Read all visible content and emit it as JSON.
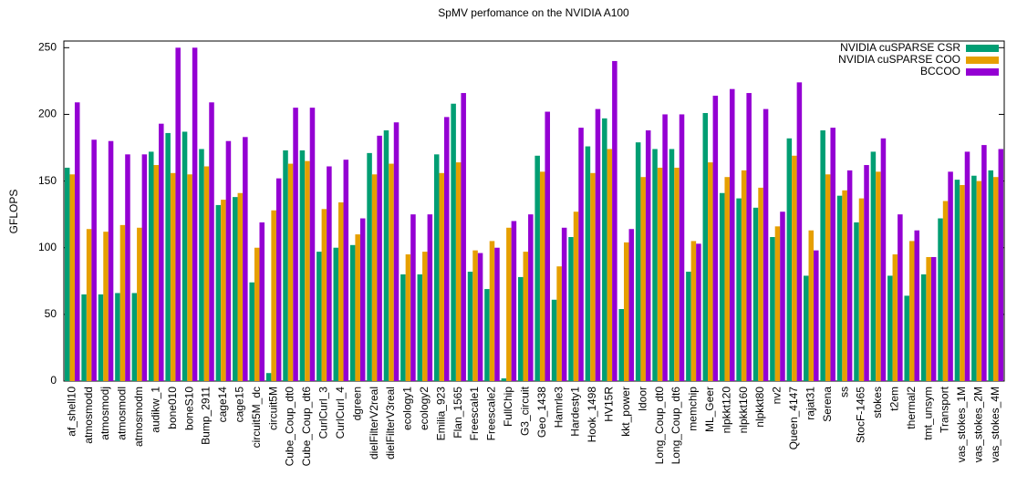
{
  "chart_data": {
    "type": "bar",
    "title": "SpMV perfomance on the NVIDIA A100",
    "ylabel": "GFLOPS",
    "categories": [
      "af_shell10",
      "atmosmodd",
      "atmosmodj",
      "atmosmodl",
      "atmosmodm",
      "audikw_1",
      "bone010",
      "boneS10",
      "Bump_2911",
      "cage14",
      "cage15",
      "circuit5M_dc",
      "circuit5M",
      "Cube_Coup_dt0",
      "Cube_Coup_dt6",
      "CurlCurl_3",
      "CurlCurl_4",
      "dgreen",
      "dielFilterV2real",
      "dielFilterV3real",
      "ecology1",
      "ecology2",
      "Emilia_923",
      "Flan_1565",
      "Freescale1",
      "Freescale2",
      "FullChip",
      "G3_circuit",
      "Geo_1438",
      "Hamrle3",
      "Hardesty1",
      "Hook_1498",
      "HV15R",
      "kkt_power",
      "ldoor",
      "Long_Coup_dt0",
      "Long_Coup_dt6",
      "memchip",
      "ML_Geer",
      "nlpkkt120",
      "nlpkkt160",
      "nlpkkt80",
      "nv2",
      "Queen_4147",
      "rajat31",
      "Serena",
      "ss",
      "StocF-1465",
      "stokes",
      "t2em",
      "thermal2",
      "tmt_unsym",
      "Transport",
      "vas_stokes_1M",
      "vas_stokes_2M",
      "vas_stokes_4M"
    ],
    "series": [
      {
        "name": "NVIDIA cuSPARSE CSR",
        "color": "#009e73",
        "values": [
          160,
          65,
          65,
          66,
          66,
          172,
          186,
          187,
          174,
          132,
          138,
          74,
          6,
          173,
          173,
          97,
          100,
          102,
          171,
          188,
          80,
          80,
          170,
          208,
          82,
          69,
          2,
          78,
          169,
          61,
          108,
          176,
          197,
          54,
          179,
          174,
          174,
          82,
          201,
          141,
          137,
          130,
          108,
          182,
          79,
          188,
          139,
          119,
          172,
          79,
          64,
          80,
          122,
          151,
          154,
          158
        ]
      },
      {
        "name": "NVIDIA cuSPARSE COO",
        "color": "#e69f00",
        "values": [
          155,
          114,
          112,
          117,
          115,
          162,
          156,
          155,
          161,
          136,
          141,
          100,
          128,
          163,
          165,
          129,
          134,
          110,
          155,
          163,
          95,
          97,
          156,
          164,
          98,
          105,
          115,
          97,
          157,
          86,
          127,
          156,
          174,
          104,
          153,
          160,
          160,
          105,
          164,
          153,
          158,
          145,
          116,
          169,
          113,
          155,
          143,
          137,
          157,
          95,
          105,
          93,
          135,
          147,
          150,
          153
        ]
      },
      {
        "name": "BCCOO",
        "color": "#9400d3",
        "values": [
          209,
          181,
          180,
          170,
          170,
          193,
          250,
          250,
          209,
          180,
          183,
          119,
          152,
          205,
          205,
          161,
          166,
          122,
          184,
          194,
          125,
          125,
          198,
          216,
          96,
          100,
          120,
          125,
          202,
          115,
          190,
          204,
          240,
          114,
          188,
          200,
          200,
          103,
          214,
          219,
          216,
          204,
          127,
          224,
          98,
          190,
          158,
          162,
          182,
          125,
          113,
          93,
          157,
          172,
          177,
          174
        ]
      }
    ],
    "ylim": [
      0,
      255
    ],
    "yticks": [
      0,
      50,
      100,
      150,
      200,
      250
    ],
    "legend": "upper right",
    "mirror_ticks": true
  }
}
